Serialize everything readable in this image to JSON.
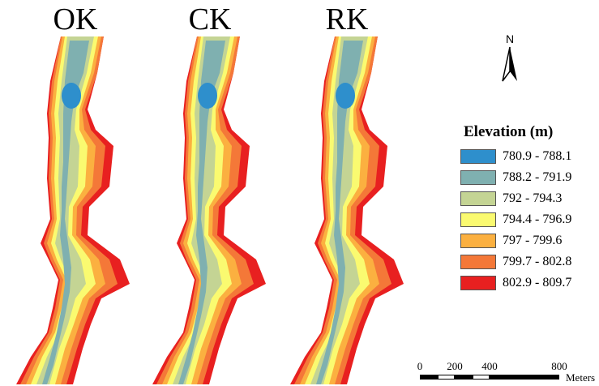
{
  "maps": [
    {
      "label": "OK"
    },
    {
      "label": "CK"
    },
    {
      "label": "RK"
    }
  ],
  "north_arrow": {
    "label": "N"
  },
  "legend": {
    "title": "Elevation (m)",
    "classes": [
      {
        "label": "780.9 - 788.1",
        "color": "#2e8fcc"
      },
      {
        "label": "788.2 - 791.9",
        "color": "#7fb0b0"
      },
      {
        "label": "792 - 794.3",
        "color": "#c4d494"
      },
      {
        "label": "794.4 - 796.9",
        "color": "#fafa70"
      },
      {
        "label": "797 - 799.6",
        "color": "#fbb040"
      },
      {
        "label": "799.7 - 802.8",
        "color": "#f47838"
      },
      {
        "label": "802.9 - 809.7",
        "color": "#e82020"
      }
    ]
  },
  "scale_bar": {
    "ticks": [
      "0",
      "200",
      "400",
      "800"
    ],
    "units": "Meters"
  }
}
